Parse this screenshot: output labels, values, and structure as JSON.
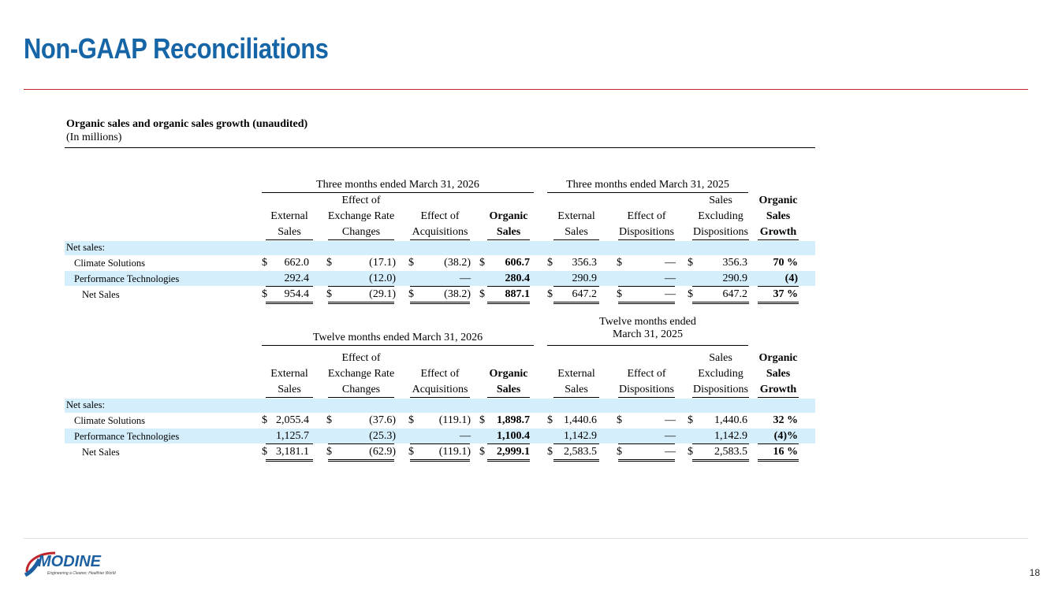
{
  "slide": {
    "title": "Non-GAAP Reconciliations",
    "page_number": "18",
    "logo": {
      "word": "MODINE",
      "tagline": "Engineering a Cleaner, Healthier World",
      "mark": "®"
    }
  },
  "report": {
    "heading": "Organic sales and organic sales growth (unaudited)",
    "subheading": "(In millions)"
  },
  "columns": [
    [
      "External",
      "Sales"
    ],
    [
      "Effect of",
      "Exchange Rate",
      "Changes"
    ],
    [
      "Effect of",
      "Acquisitions"
    ],
    [
      "Organic",
      "Sales"
    ],
    [
      "External",
      "Sales"
    ],
    [
      "Effect of",
      "Dispositions"
    ],
    [
      "Sales",
      "Excluding",
      "Dispositions"
    ],
    [
      "Organic",
      "Sales",
      "Growth"
    ]
  ],
  "tables": [
    {
      "group_left": "Three months ended March 31, 2026",
      "group_right": "Three months ended March 31, 2025",
      "section_label": "Net sales:",
      "rows": [
        {
          "label": "Climate Solutions",
          "values": [
            "662.0",
            "(17.1)",
            "(38.2)",
            "606.7",
            "356.3",
            "—",
            "356.3",
            "70 %"
          ]
        },
        {
          "label": "Performance Technologies",
          "values": [
            "292.4",
            "(12.0)",
            "—",
            "280.4",
            "290.9",
            "—",
            "290.9",
            "(4)"
          ]
        },
        {
          "label": "Net Sales",
          "values": [
            "954.4",
            "(29.1)",
            "(38.2)",
            "887.1",
            "647.2",
            "—",
            "647.2",
            "37 %"
          ]
        }
      ]
    },
    {
      "group_left": "Twelve months ended March 31, 2026",
      "group_right": "Twelve months ended\nMarch 31, 2025",
      "section_label": "Net sales:",
      "rows": [
        {
          "label": "Climate Solutions",
          "values": [
            "2,055.4",
            "(37.6)",
            "(119.1)",
            "1,898.7",
            "1,440.6",
            "—",
            "1,440.6",
            "32 %"
          ]
        },
        {
          "label": "Performance Technologies",
          "values": [
            "1,125.7",
            "(25.3)",
            "—",
            "1,100.4",
            "1,142.9",
            "—",
            "1,142.9",
            "(4)%"
          ]
        },
        {
          "label": "Net Sales",
          "values": [
            "3,181.1",
            "(62.9)",
            "(119.1)",
            "2,999.1",
            "2,583.5",
            "—",
            "2,583.5",
            "16 %"
          ]
        }
      ]
    }
  ],
  "currency_symbol": "$",
  "colors": {
    "title": "#1565a7",
    "accent_rule": "#c0262c",
    "row_band": "#d4eefb"
  }
}
